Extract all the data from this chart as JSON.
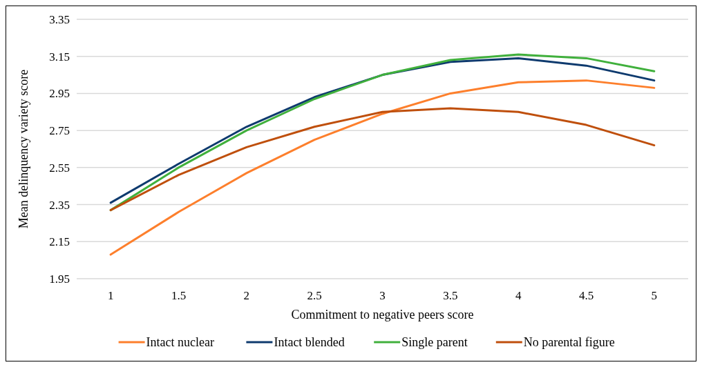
{
  "chart_data": {
    "type": "line",
    "xlabel": "Commitment to negative peers score",
    "ylabel": "Mean delinquency variety score",
    "categories": [
      "1",
      "1.5",
      "2",
      "2.5",
      "3",
      "3.5",
      "4",
      "4.5",
      "5"
    ],
    "series": [
      {
        "name": "Intact nuclear",
        "color": "#fd7f2c",
        "values": [
          2.08,
          2.31,
          2.52,
          2.7,
          2.84,
          2.95,
          3.01,
          3.02,
          2.98
        ]
      },
      {
        "name": "Intact blended",
        "color": "#0e3a6e",
        "values": [
          2.36,
          2.57,
          2.77,
          2.93,
          3.05,
          3.12,
          3.14,
          3.1,
          3.02
        ]
      },
      {
        "name": "Single parent",
        "color": "#40b03c",
        "values": [
          2.32,
          2.55,
          2.75,
          2.92,
          3.05,
          3.13,
          3.16,
          3.14,
          3.07
        ]
      },
      {
        "name": "No parental figure",
        "color": "#bf4f0c",
        "values": [
          2.32,
          2.51,
          2.66,
          2.77,
          2.85,
          2.87,
          2.85,
          2.78,
          2.67
        ]
      }
    ],
    "ylim": [
      1.95,
      3.35
    ],
    "yticks": [
      1.95,
      2.15,
      2.35,
      2.55,
      2.75,
      2.95,
      3.15,
      3.35
    ],
    "grid": "y",
    "legend": "bottom",
    "marker": "none",
    "line_style": "solid"
  }
}
